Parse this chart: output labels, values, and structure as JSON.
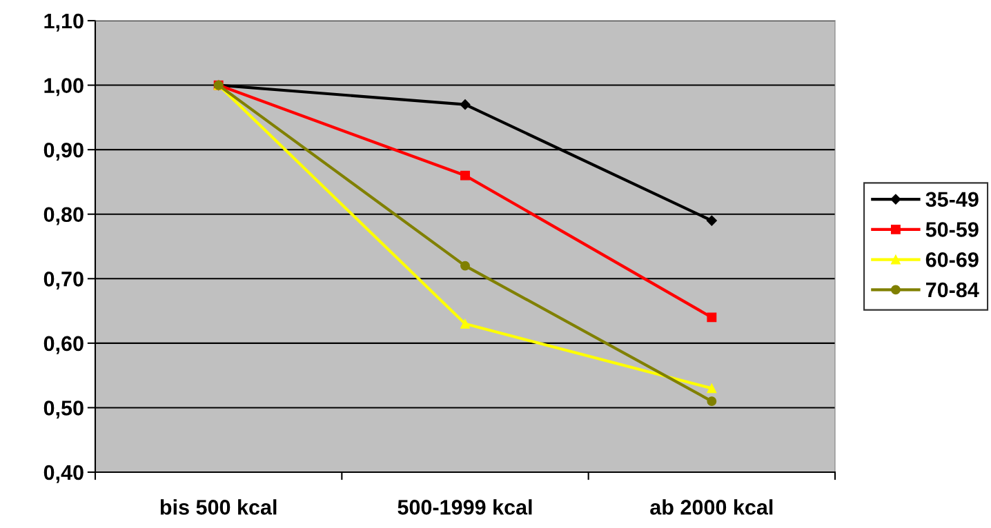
{
  "chart_data": {
    "type": "line",
    "categories": [
      "bis 500 kcal",
      "500-1999 kcal",
      "ab 2000 kcal"
    ],
    "series": [
      {
        "name": "35-49",
        "color": "#000000",
        "marker": "diamond",
        "values": [
          1.0,
          0.97,
          0.79
        ]
      },
      {
        "name": "50-59",
        "color": "#ff0000",
        "marker": "square",
        "values": [
          1.0,
          0.86,
          0.64
        ]
      },
      {
        "name": "60-69",
        "color": "#ffff00",
        "marker": "triangle",
        "values": [
          1.0,
          0.63,
          0.53
        ]
      },
      {
        "name": "70-84",
        "color": "#808000",
        "marker": "circle",
        "values": [
          1.0,
          0.72,
          0.51
        ]
      }
    ],
    "ylim": [
      0.4,
      1.1
    ],
    "yticks": [
      {
        "value": 0.4,
        "label": "0,40"
      },
      {
        "value": 0.5,
        "label": "0,50"
      },
      {
        "value": 0.6,
        "label": "0,60"
      },
      {
        "value": 0.7,
        "label": "0,70"
      },
      {
        "value": 0.8,
        "label": "0,80"
      },
      {
        "value": 0.9,
        "label": "0,90"
      },
      {
        "value": 1.0,
        "label": "1,00"
      },
      {
        "value": 1.1,
        "label": "1,10"
      }
    ],
    "grid": "y",
    "legend": "right",
    "line_style": "solid"
  }
}
